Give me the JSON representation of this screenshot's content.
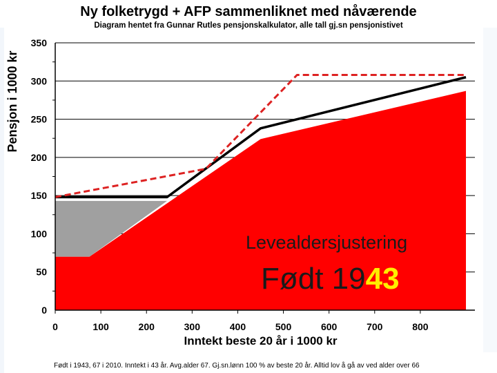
{
  "chart_data": {
    "type": "area",
    "title": "Ny folketrygd + AFP sammenliknet med nåværende",
    "subtitle": "Diagram hentet fra Gunnar Rutles pensjonskalkulator, alle tall gj.sn pensjonistivet",
    "xlabel": "Inntekt beste 20 år i 1000 kr",
    "ylabel": "Pensjon i 1000 kr",
    "xlim": [
      0,
      900
    ],
    "ylim": [
      0,
      350
    ],
    "x_ticks": [
      0,
      100,
      200,
      300,
      400,
      500,
      600,
      700,
      800
    ],
    "y_ticks": [
      0,
      50,
      100,
      150,
      200,
      250,
      300,
      350
    ],
    "grid": "horizontal",
    "series": [
      {
        "kind": "area",
        "color": "#ff0000",
        "points": [
          [
            0,
            70
          ],
          [
            75,
            70
          ],
          [
            450,
            224
          ],
          [
            900,
            287
          ]
        ]
      },
      {
        "kind": "area",
        "color": "#a0a0a0",
        "points": [
          [
            0,
            143
          ],
          [
            245,
            143
          ],
          [
            75,
            70
          ],
          [
            0,
            70
          ]
        ]
      },
      {
        "kind": "line",
        "style": "solid",
        "color": "#000000",
        "points": [
          [
            0,
            148
          ],
          [
            245,
            148
          ],
          [
            450,
            238
          ],
          [
            900,
            305
          ]
        ]
      },
      {
        "kind": "line",
        "style": "dashed",
        "color": "#dd2222",
        "points": [
          [
            0,
            148
          ],
          [
            330,
            185
          ],
          [
            530,
            308
          ],
          [
            900,
            308
          ]
        ]
      }
    ],
    "annotations": [
      {
        "text": "Levealdersjustering"
      },
      {
        "text_prefix": "Født 19",
        "text_highlight": "43"
      }
    ]
  },
  "footnote": "Født i 1943, 67 i 2010. Inntekt i 43 år. Avg.alder 67. Gj.sn.lønn 100 % av beste 20 år. Alltid lov å gå av ved alder over 66",
  "colors": {
    "red_area": "#ff0000",
    "grey_area": "#a0a0a0",
    "black_line": "#000000",
    "dashed_line": "#dd2222",
    "highlight": "#ffee00"
  }
}
